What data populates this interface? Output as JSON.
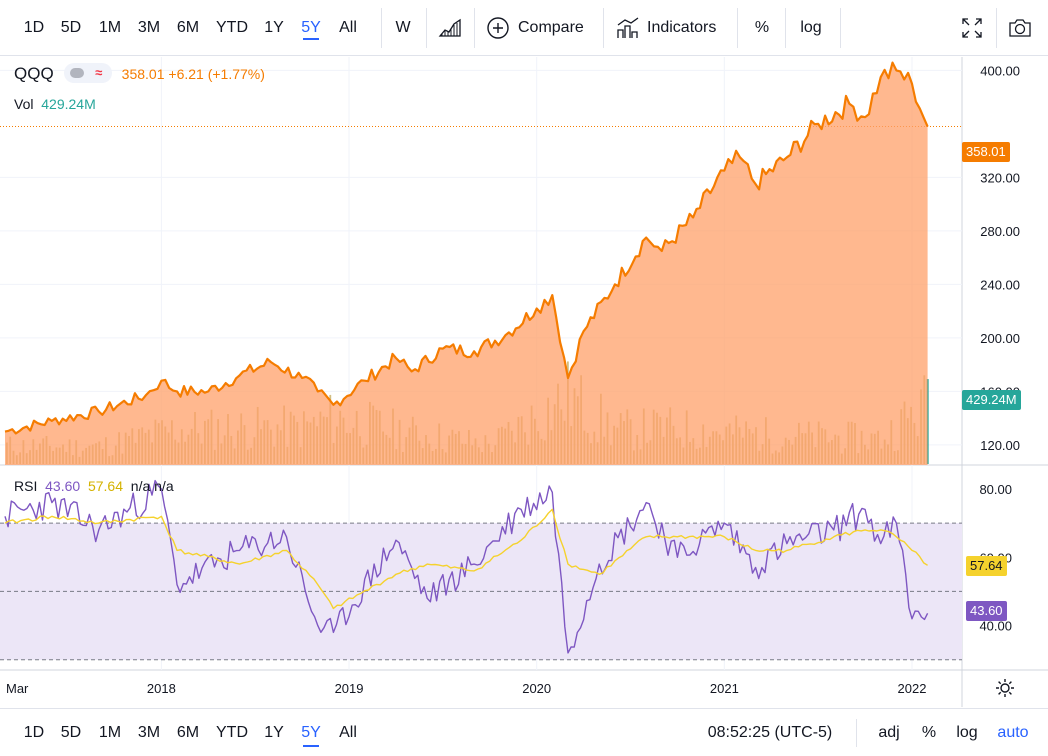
{
  "toolbar": {
    "ranges": [
      "1D",
      "5D",
      "1M",
      "3M",
      "6M",
      "YTD",
      "1Y",
      "5Y",
      "All"
    ],
    "active_range": "5Y",
    "interval": "W",
    "compare_label": "Compare",
    "indicators_label": "Indicators",
    "percent_label": "%",
    "log_label": "log",
    "icons": [
      "area-chart-style-icon",
      "compare-plus-icon",
      "indicators-icon",
      "fullscreen-icon",
      "camera-icon"
    ]
  },
  "legend": {
    "symbol": "QQQ",
    "price": "358.01",
    "change": "+6.21",
    "change_pct": "(+1.77%)",
    "vol_label": "Vol",
    "vol_value": "429.24M",
    "rsi_label": "RSI",
    "rsi_value": "43.60",
    "rsi_ma_value": "57.64",
    "rsi_na_1": "n/a",
    "rsi_na_2": "n/a"
  },
  "price_axis": {
    "ticks": [
      "400.00",
      "320.00",
      "280.00",
      "240.00",
      "200.00",
      "160.00",
      "120.00"
    ],
    "last_price_tag": "358.01",
    "volume_tag": "429.24M"
  },
  "rsi_axis": {
    "ticks": [
      "80.00",
      "60.00",
      "40.00"
    ],
    "rsi_tag": "43.60",
    "rsi_ma_tag": "57.64"
  },
  "time_axis": {
    "labels": [
      "Mar",
      "2018",
      "2019",
      "2020",
      "2021",
      "2022"
    ]
  },
  "bottom": {
    "ranges": [
      "1D",
      "5D",
      "1M",
      "3M",
      "6M",
      "YTD",
      "1Y",
      "5Y",
      "All"
    ],
    "active_range": "5Y",
    "clock": "08:52:25 (UTC-5)",
    "adj_label": "adj",
    "percent_label": "%",
    "log_label": "log",
    "auto_label": "auto"
  },
  "colors": {
    "price_line": "#f57c00",
    "area_fill": "#ffa06a",
    "volume": "#c8b46e",
    "rsi_line": "#7e57c2",
    "rsi_ma": "#f5d22d",
    "rsi_band": "#ece6f7",
    "accent": "#2962ff",
    "vol_tag": "#26a69a"
  },
  "chart_data": [
    {
      "type": "area",
      "title": "QQQ",
      "x": [
        "2017-03",
        "2017-06",
        "2017-09",
        "2017-12",
        "2018-01",
        "2018-02",
        "2018-04",
        "2018-06",
        "2018-08",
        "2018-10",
        "2018-11",
        "2018-12",
        "2019-02",
        "2019-04",
        "2019-05",
        "2019-07",
        "2019-09",
        "2019-11",
        "2020-01",
        "2020-02",
        "2020-03",
        "2020-04",
        "2020-06",
        "2020-08",
        "2020-09",
        "2020-11",
        "2021-01",
        "2021-02",
        "2021-03",
        "2021-05",
        "2021-07",
        "2021-09",
        "2021-10",
        "2021-11",
        "2021-12",
        "2022-01",
        "2022-02"
      ],
      "series": [
        {
          "values": [
            130,
            138,
            145,
            157,
            168,
            160,
            160,
            172,
            182,
            170,
            160,
            150,
            168,
            185,
            175,
            192,
            190,
            202,
            222,
            232,
            170,
            205,
            240,
            275,
            265,
            290,
            325,
            335,
            315,
            335,
            360,
            375,
            365,
            395,
            400,
            390,
            358
          ]
        }
      ],
      "ylim": [
        105,
        410
      ],
      "last_value": 358.01
    },
    {
      "type": "bar",
      "title": "Vol",
      "x": [
        "2017-03",
        "2017-09",
        "2018-02",
        "2018-10",
        "2018-12",
        "2019-05",
        "2019-10",
        "2020-03",
        "2020-06",
        "2020-09",
        "2021-01",
        "2021-05",
        "2021-11",
        "2022-01",
        "2022-02"
      ],
      "series": [
        {
          "values": [
            130,
            125,
            250,
            260,
            330,
            220,
            140,
            480,
            240,
            260,
            230,
            200,
            180,
            360,
            429.24
          ]
        }
      ]
    },
    {
      "type": "line",
      "title": "RSI",
      "x": [
        "2017-03",
        "2017-06",
        "2017-09",
        "2018-01",
        "2018-02",
        "2018-06",
        "2018-09",
        "2018-11",
        "2018-12",
        "2019-04",
        "2019-06",
        "2019-09",
        "2019-12",
        "2020-02",
        "2020-03",
        "2020-05",
        "2020-08",
        "2020-10",
        "2021-01",
        "2021-03",
        "2021-05",
        "2021-08",
        "2021-10",
        "2021-11",
        "2021-12",
        "2022-01",
        "2022-02"
      ],
      "series": [
        {
          "name": "RSI",
          "values": [
            72,
            76,
            68,
            80,
            52,
            62,
            66,
            40,
            38,
            65,
            48,
            58,
            74,
            79,
            32,
            58,
            76,
            60,
            70,
            57,
            64,
            68,
            74,
            64,
            70,
            42,
            43.6
          ]
        },
        {
          "name": "RSI MA",
          "values": [
            70,
            72,
            70,
            72,
            62,
            58,
            62,
            52,
            45,
            55,
            58,
            56,
            65,
            74,
            58,
            55,
            66,
            66,
            66,
            62,
            62,
            66,
            68,
            68,
            66,
            62,
            57.64
          ]
        }
      ],
      "ylim": [
        27,
        87
      ],
      "bands": [
        70,
        50,
        30
      ]
    }
  ]
}
